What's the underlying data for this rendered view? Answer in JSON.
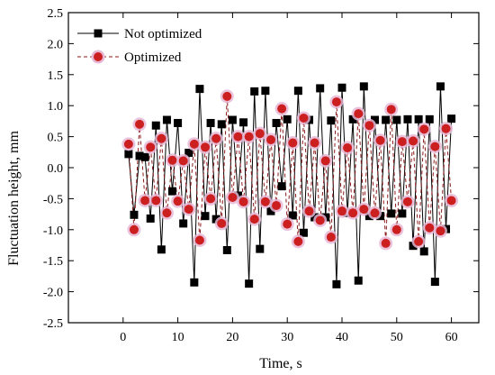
{
  "chart_data": {
    "type": "line",
    "xlabel": "Time,  s",
    "ylabel": "Fluctuation height,  mm",
    "xlim": [
      -10,
      65
    ],
    "ylim": [
      -2.5,
      2.5
    ],
    "xticks": [
      0,
      10,
      20,
      30,
      40,
      50,
      60
    ],
    "yticks": [
      -2.5,
      -2.0,
      -1.5,
      -1.0,
      -0.5,
      0.0,
      0.5,
      1.0,
      1.5,
      2.0,
      2.5
    ],
    "xtick_labels": [
      "0",
      "10",
      "20",
      "30",
      "40",
      "50",
      "60"
    ],
    "ytick_labels": [
      "-2.5",
      "-2.0",
      "-1.5",
      "-1.0",
      "-0.5",
      "0.0",
      "0.5",
      "1.0",
      "1.5",
      "2.0",
      "2.5"
    ],
    "grid": false,
    "legend_position": "top-left",
    "series": [
      {
        "name": "Not optimized",
        "color": "#000000",
        "line_style": "solid",
        "marker": "square",
        "x": [
          1,
          2,
          3,
          4,
          5,
          6,
          7,
          8,
          9,
          10,
          11,
          12,
          13,
          14,
          15,
          16,
          17,
          18,
          19,
          20,
          21,
          22,
          23,
          24,
          25,
          26,
          27,
          28,
          29,
          30,
          31,
          32,
          33,
          34,
          35,
          36,
          37,
          38,
          39,
          40,
          41,
          42,
          43,
          44,
          45,
          46,
          47,
          48,
          49,
          50,
          51,
          52,
          53,
          54,
          55,
          56,
          57,
          58,
          59,
          60
        ],
        "y": [
          0.22,
          -0.76,
          0.19,
          0.17,
          -0.82,
          0.68,
          -1.32,
          0.77,
          -0.38,
          0.72,
          -0.9,
          0.24,
          -1.85,
          1.27,
          -0.78,
          0.72,
          -0.83,
          0.7,
          -1.33,
          0.77,
          -0.45,
          0.73,
          -1.87,
          1.23,
          -1.31,
          1.24,
          -0.7,
          0.72,
          -0.3,
          0.78,
          -0.77,
          1.24,
          -1.05,
          0.77,
          -0.8,
          1.28,
          -0.8,
          0.76,
          -1.88,
          1.29,
          -0.73,
          0.78,
          -1.82,
          1.31,
          -0.78,
          0.77,
          -0.78,
          0.77,
          -0.74,
          0.77,
          -0.74,
          0.78,
          -1.26,
          0.78,
          -1.35,
          0.78,
          -1.84,
          1.31,
          -0.99,
          0.79
        ]
      },
      {
        "name": "Optimized",
        "color": "#8b1a1a",
        "line_style": "dashed",
        "marker": "circle",
        "x": [
          1,
          2,
          3,
          4,
          5,
          6,
          7,
          8,
          9,
          10,
          11,
          12,
          13,
          14,
          15,
          16,
          17,
          18,
          19,
          20,
          21,
          22,
          23,
          24,
          25,
          26,
          27,
          28,
          29,
          30,
          31,
          32,
          33,
          34,
          35,
          36,
          37,
          38,
          39,
          40,
          41,
          42,
          43,
          44,
          45,
          46,
          47,
          48,
          49,
          50,
          51,
          52,
          53,
          54,
          55,
          56,
          57,
          58,
          59,
          60
        ],
        "y": [
          0.38,
          -1.0,
          0.7,
          -0.53,
          0.33,
          -0.53,
          0.47,
          -0.73,
          0.12,
          -0.54,
          0.11,
          -0.67,
          0.38,
          -1.17,
          0.33,
          -0.5,
          0.47,
          -0.9,
          1.15,
          -0.48,
          0.5,
          -0.55,
          0.5,
          -0.83,
          0.55,
          -0.55,
          0.45,
          -0.61,
          0.95,
          -0.91,
          0.4,
          -1.19,
          0.8,
          -0.7,
          0.4,
          -0.85,
          0.11,
          -1.12,
          1.06,
          -0.7,
          0.32,
          -0.73,
          0.87,
          -0.67,
          0.68,
          -0.73,
          0.44,
          -1.22,
          0.94,
          -1.0,
          0.42,
          -0.55,
          0.43,
          -1.19,
          0.62,
          -0.97,
          0.34,
          -1.02,
          0.63,
          -0.53
        ]
      }
    ]
  }
}
